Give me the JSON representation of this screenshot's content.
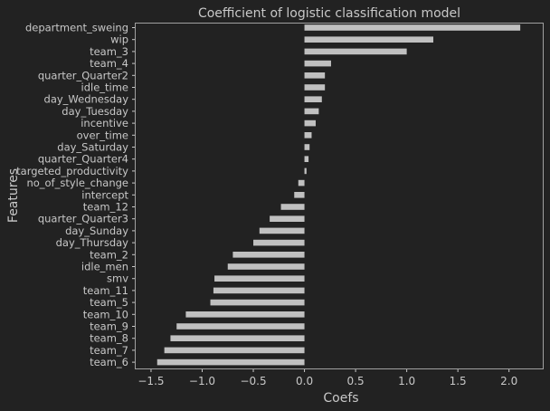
{
  "chart_data": {
    "type": "bar",
    "orientation": "horizontal",
    "title": "Coefficient of logistic classification model",
    "xlabel": "Coefs",
    "ylabel": "Features",
    "xlim": [
      -1.65,
      2.33
    ],
    "xticks": [
      -1.5,
      -1.0,
      -0.5,
      0.0,
      0.5,
      1.0,
      1.5,
      2.0
    ],
    "xtick_labels": [
      "−1.5",
      "−1.0",
      "−0.5",
      "0.0",
      "0.5",
      "1.0",
      "1.5",
      "2.0"
    ],
    "grid": false,
    "bar_color": "#c0c0c0",
    "background": "#222222",
    "categories": [
      "department_sweing",
      "wip",
      "team_3",
      "team_4",
      "quarter_Quarter2",
      "idle_time",
      "day_Wednesday",
      "day_Tuesday",
      "incentive",
      "over_time",
      "day_Saturday",
      "quarter_Quarter4",
      "targeted_productivity",
      "no_of_style_change",
      "intercept",
      "team_12",
      "quarter_Quarter3",
      "day_Sunday",
      "day_Thursday",
      "team_2",
      "idle_men",
      "smv",
      "team_11",
      "team_5",
      "team_10",
      "team_9",
      "team_8",
      "team_7",
      "team_6"
    ],
    "values": [
      2.11,
      1.26,
      1.0,
      0.26,
      0.2,
      0.2,
      0.17,
      0.14,
      0.11,
      0.07,
      0.05,
      0.04,
      0.02,
      -0.06,
      -0.1,
      -0.23,
      -0.34,
      -0.44,
      -0.5,
      -0.7,
      -0.75,
      -0.88,
      -0.89,
      -0.92,
      -1.16,
      -1.25,
      -1.31,
      -1.37,
      -1.44
    ]
  }
}
